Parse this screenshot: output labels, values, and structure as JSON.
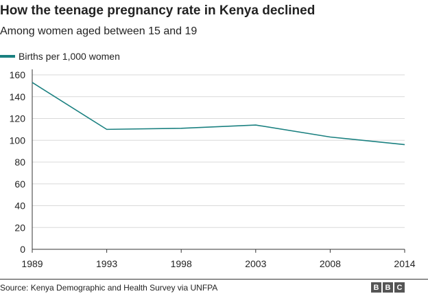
{
  "header": {
    "title": "How the teenage pregnancy rate in Kenya declined",
    "subtitle": "Among women aged between 15 and 19"
  },
  "colors": {
    "series": "#1a8080",
    "grid": "#d9d9d9",
    "axis": "#333333"
  },
  "chart_data": {
    "type": "line",
    "x": [
      "1989",
      "1993",
      "1998",
      "2003",
      "2008",
      "2014"
    ],
    "series": [
      {
        "name": "Births per 1,000 women",
        "values": [
          153,
          110,
          111,
          114,
          103,
          96
        ]
      }
    ],
    "ylim": [
      0,
      160
    ],
    "yticks": [
      0,
      20,
      40,
      60,
      80,
      100,
      120,
      140,
      160
    ],
    "grid": true,
    "legend": "top-left",
    "xlabel": "",
    "ylabel": ""
  },
  "footer": {
    "source": "Source: Kenya Demographic and Health Survey via UNFPA",
    "logo_letters": [
      "B",
      "B",
      "C"
    ]
  }
}
